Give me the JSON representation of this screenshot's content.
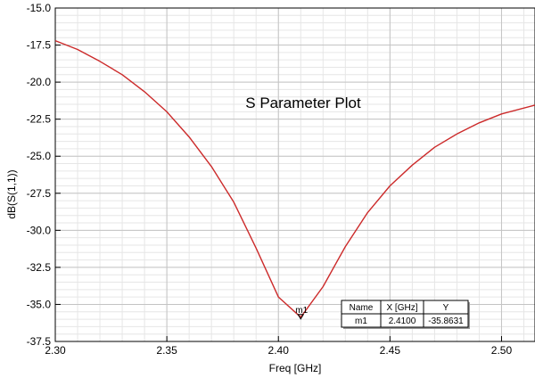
{
  "chart_data": {
    "type": "line",
    "title": "S Parameter Plot",
    "xlabel": "Freq [GHz]",
    "ylabel": "dB(S(1,1))",
    "xlim": [
      2.3,
      2.515
    ],
    "ylim": [
      -37.5,
      -15.0
    ],
    "grid": true,
    "x_ticks": [
      "2.30",
      "2.35",
      "2.40",
      "2.45",
      "2.50"
    ],
    "y_ticks": [
      "-15.0",
      "-17.5",
      "-20.0",
      "-22.5",
      "-25.0",
      "-27.5",
      "-30.0",
      "-32.5",
      "-35.0",
      "-37.5"
    ],
    "series": [
      {
        "color": "#cc2a2a",
        "x": [
          2.3,
          2.31,
          2.32,
          2.33,
          2.34,
          2.35,
          2.36,
          2.37,
          2.38,
          2.39,
          2.4,
          2.41,
          2.42,
          2.43,
          2.44,
          2.45,
          2.46,
          2.47,
          2.48,
          2.49,
          2.5,
          2.515
        ],
        "y": [
          -17.2,
          -17.8,
          -18.6,
          -19.5,
          -20.65,
          -22.0,
          -23.7,
          -25.7,
          -28.1,
          -31.2,
          -34.5,
          -35.8631,
          -33.8,
          -31.1,
          -28.8,
          -27.0,
          -25.6,
          -24.4,
          -23.5,
          -22.75,
          -22.15,
          -21.55
        ]
      }
    ],
    "marker": {
      "label": "m1",
      "x": 2.41,
      "y": -35.8631
    },
    "marker_table": {
      "headers": [
        "Name",
        "X [GHz]",
        "Y"
      ],
      "rows": [
        [
          "m1",
          "2.4100",
          "-35.8631"
        ]
      ]
    }
  }
}
